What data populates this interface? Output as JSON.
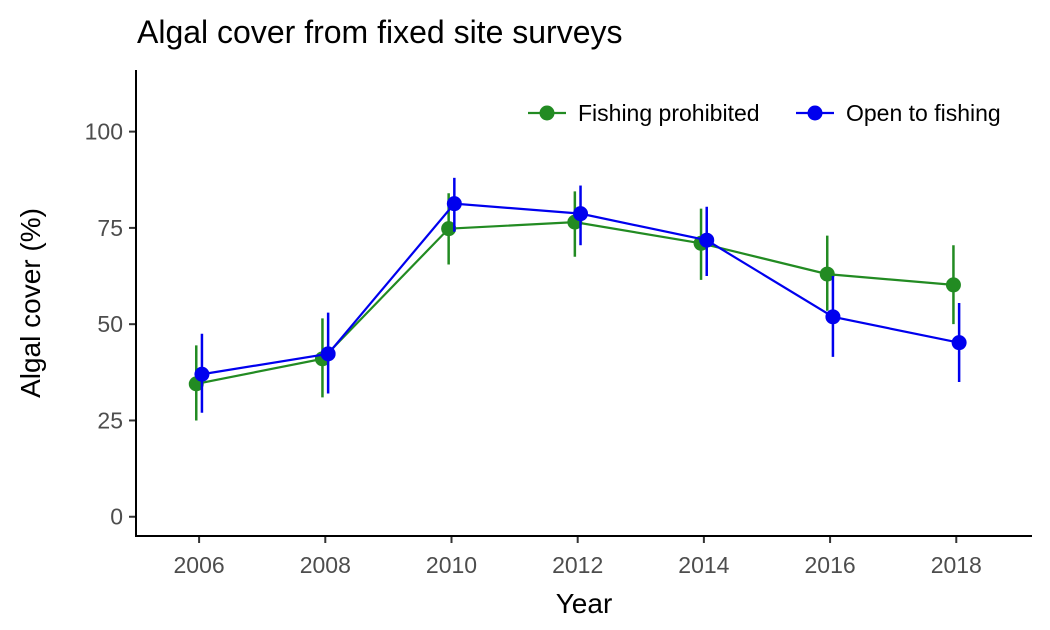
{
  "chart_data": {
    "type": "line",
    "title": "Algal cover from fixed site surveys",
    "xlabel": "Year",
    "ylabel": "Algal cover (%)",
    "x": [
      2006,
      2008,
      2010,
      2012,
      2014,
      2016,
      2018
    ],
    "xlim": [
      2005,
      2019.2
    ],
    "ylim": [
      -5,
      116
    ],
    "xticks": [
      2006,
      2008,
      2010,
      2012,
      2014,
      2016,
      2018
    ],
    "yticks": [
      0,
      25,
      50,
      75,
      100
    ],
    "grid": false,
    "legend_position": "top-right",
    "error_bars": true,
    "series": [
      {
        "name": "Fishing prohibited",
        "color": "#228B22",
        "values": [
          34.5,
          41,
          74.8,
          76.5,
          71,
          63,
          60.2
        ],
        "lower": [
          25,
          31,
          65.5,
          67.5,
          61.5,
          53.5,
          50
        ],
        "upper": [
          44.5,
          51.5,
          84,
          84.5,
          80,
          73,
          70.5
        ]
      },
      {
        "name": "Open to fishing",
        "color": "#0000EE",
        "values": [
          37,
          42.3,
          81.3,
          78.7,
          71.8,
          51.9,
          45.2
        ],
        "lower": [
          27,
          32,
          74,
          70.5,
          62.5,
          41.5,
          35
        ],
        "upper": [
          47.5,
          53,
          88,
          86,
          80.5,
          62.5,
          55.5
        ]
      }
    ]
  }
}
